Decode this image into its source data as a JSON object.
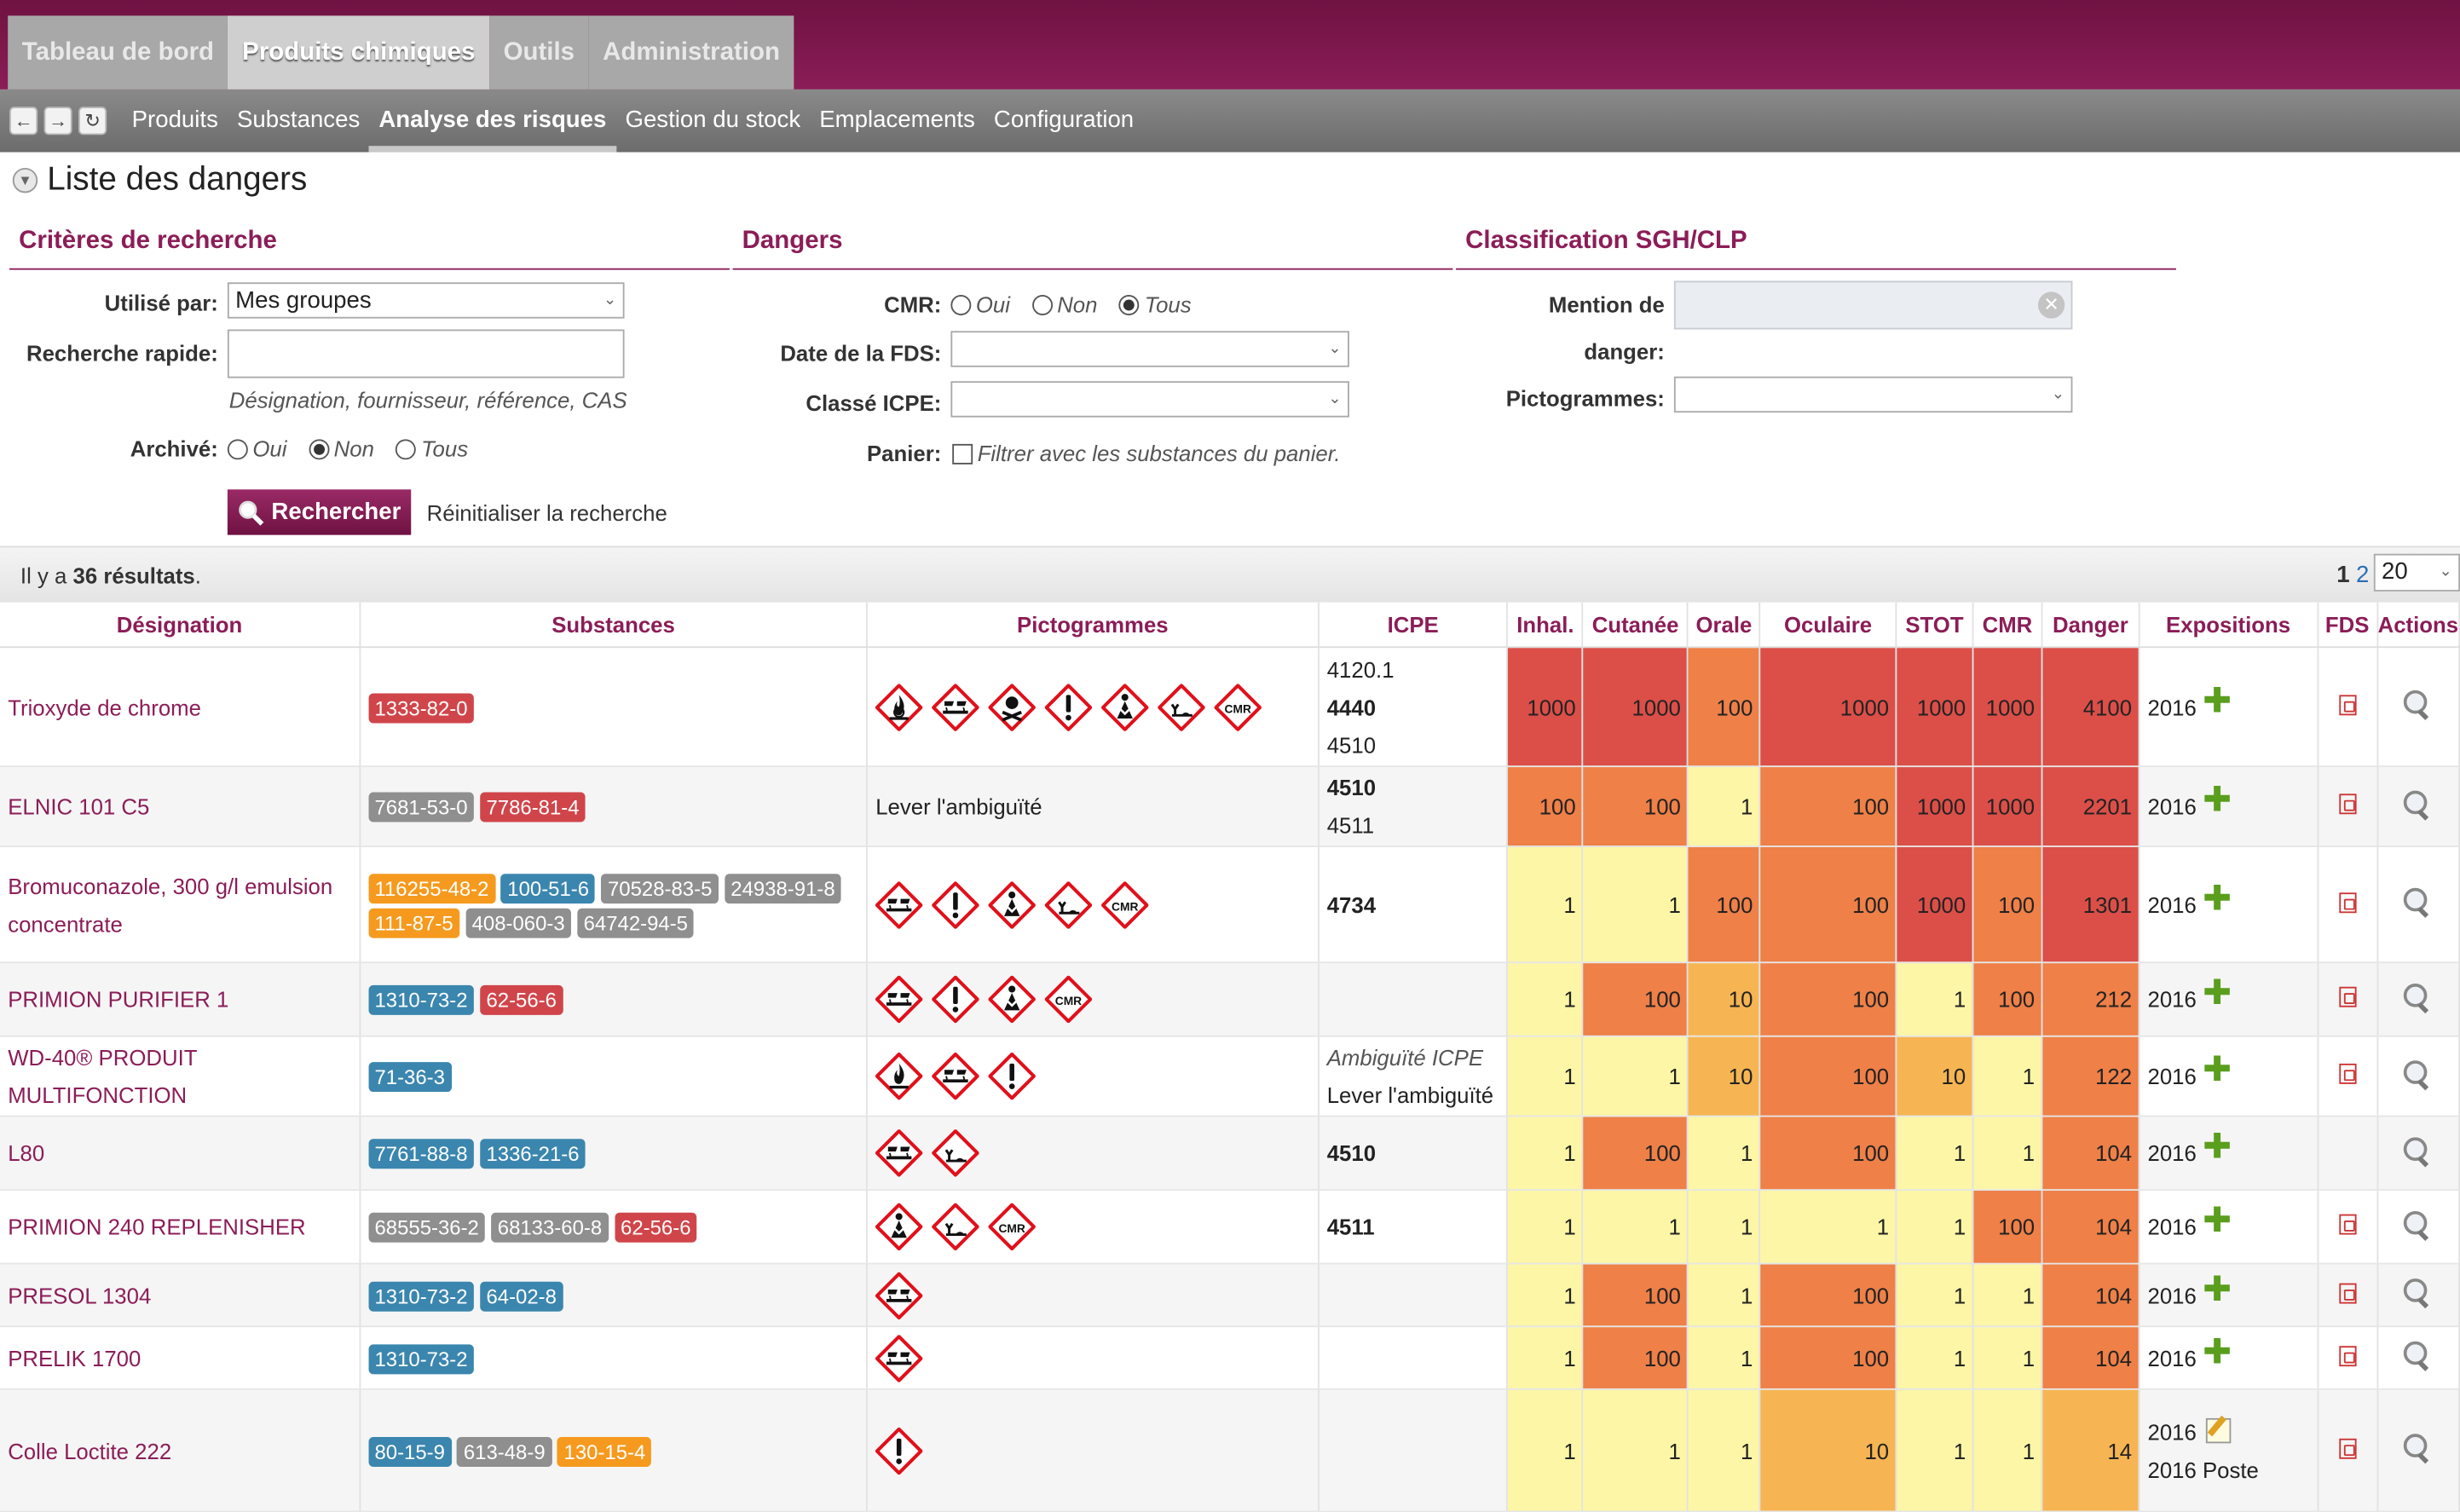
{
  "nav": {
    "tabs": [
      "Tableau de bord",
      "Produits chimiques",
      "Outils",
      "Administration"
    ],
    "active_tab": 1,
    "subtabs": [
      "Produits",
      "Substances",
      "Analyse des risques",
      "Gestion du stock",
      "Emplacements",
      "Configuration"
    ],
    "active_subtab": 2
  },
  "page": {
    "title": "Liste des dangers"
  },
  "criteria": {
    "title": "Critères de recherche",
    "used_by_label": "Utilisé par:",
    "used_by_value": "Mes groupes",
    "quick_search_label": "Recherche rapide:",
    "quick_search_value": "",
    "quick_search_hint": "Désignation, fournisseur, référence, CAS",
    "archived_label": "Archivé:",
    "archived_options": [
      "Oui",
      "Non",
      "Tous"
    ],
    "archived_selected": 1,
    "search_button": "Rechercher",
    "reset_link": "Réinitialiser la recherche"
  },
  "dangers": {
    "title": "Dangers",
    "cmr_label": "CMR:",
    "cmr_options": [
      "Oui",
      "Non",
      "Tous"
    ],
    "cmr_selected": 2,
    "fds_date_label": "Date de la FDS:",
    "fds_date_value": "",
    "icpe_label": "Classé ICPE:",
    "icpe_value": "",
    "basket_label": "Panier:",
    "basket_text": "Filtrer avec les substances du panier."
  },
  "classification": {
    "title": "Classification SGH/CLP",
    "hazard_label_line1": "Mention de",
    "hazard_label_line2": "danger:",
    "hazard_value": "",
    "pictograms_label": "Pictogrammes:",
    "pictograms_value": ""
  },
  "results": {
    "prefix": "Il y a ",
    "count": "36 résultats",
    "suffix": ".",
    "pages": [
      "1",
      "2"
    ],
    "current_page": "1",
    "page_size": "20"
  },
  "table": {
    "headers": [
      "Désignation",
      "Substances",
      "Pictogrammes",
      "ICPE",
      "Inhal.",
      "Cutanée",
      "Orale",
      "Oculaire",
      "STOT",
      "CMR",
      "Danger",
      "Expositions",
      "FDS",
      "Actions"
    ],
    "colors": {
      "low": "#fcf6a6",
      "med": "#f6b552",
      "high": "#ee8048",
      "vhigh": "#db4f48"
    },
    "rows": [
      {
        "designation": "Trioxyde de chrome",
        "substances": [
          {
            "cas": "1333-82-0",
            "color": "red"
          }
        ],
        "pictos": [
          "flame-over-circle",
          "corrosion",
          "skull",
          "exclamation",
          "health-hazard",
          "environment",
          "cmr"
        ],
        "icpe": [
          {
            "t": "4120.1",
            "b": false
          },
          {
            "t": "4440",
            "b": true
          },
          {
            "t": "4510",
            "b": false
          }
        ],
        "scores": [
          {
            "v": "1000",
            "c": "vhigh"
          },
          {
            "v": "1000",
            "c": "vhigh"
          },
          {
            "v": "100",
            "c": "high"
          },
          {
            "v": "1000",
            "c": "vhigh"
          },
          {
            "v": "1000",
            "c": "vhigh"
          },
          {
            "v": "1000",
            "c": "vhigh"
          },
          {
            "v": "4100",
            "c": "vhigh"
          }
        ],
        "expo": [
          {
            "t": "2016",
            "icon": "plus"
          }
        ],
        "fds": true,
        "height": 76
      },
      {
        "designation": "ELNIC 101 C5",
        "substances": [
          {
            "cas": "7681-53-0",
            "color": "gray"
          },
          {
            "cas": "7786-81-4",
            "color": "red"
          }
        ],
        "pictos": [],
        "picto_text": "Lever l'ambiguïté",
        "icpe": [
          {
            "t": "4510",
            "b": true
          },
          {
            "t": "4511",
            "b": false
          }
        ],
        "scores": [
          {
            "v": "100",
            "c": "high"
          },
          {
            "v": "100",
            "c": "high"
          },
          {
            "v": "1",
            "c": "low"
          },
          {
            "v": "100",
            "c": "high"
          },
          {
            "v": "1000",
            "c": "vhigh"
          },
          {
            "v": "1000",
            "c": "vhigh"
          },
          {
            "v": "2201",
            "c": "vhigh"
          }
        ],
        "expo": [
          {
            "t": "2016",
            "icon": "plus"
          }
        ],
        "fds": true,
        "height": 51
      },
      {
        "designation": "Bromuconazole, 300 g/l emulsion concentrate",
        "substances": [
          {
            "cas": "116255-48-2",
            "color": "orange"
          },
          {
            "cas": "100-51-6",
            "color": "blue"
          },
          {
            "cas": "70528-83-5",
            "color": "gray"
          },
          {
            "cas": "24938-91-8",
            "color": "gray"
          },
          {
            "cas": "111-87-5",
            "color": "orange"
          },
          {
            "cas": "408-060-3",
            "color": "gray"
          },
          {
            "cas": "64742-94-5",
            "color": "gray"
          }
        ],
        "pictos": [
          "corrosion",
          "exclamation",
          "health-hazard",
          "environment",
          "cmr"
        ],
        "icpe": [
          {
            "t": "4734",
            "b": true
          }
        ],
        "scores": [
          {
            "v": "1",
            "c": "low"
          },
          {
            "v": "1",
            "c": "low"
          },
          {
            "v": "100",
            "c": "high"
          },
          {
            "v": "100",
            "c": "high"
          },
          {
            "v": "1000",
            "c": "vhigh"
          },
          {
            "v": "100",
            "c": "high"
          },
          {
            "v": "1301",
            "c": "vhigh"
          }
        ],
        "expo": [
          {
            "t": "2016",
            "icon": "plus"
          }
        ],
        "fds": true,
        "height": 74
      },
      {
        "designation": "PRIMION PURIFIER 1",
        "substances": [
          {
            "cas": "1310-73-2",
            "color": "blue"
          },
          {
            "cas": "62-56-6",
            "color": "red"
          }
        ],
        "pictos": [
          "corrosion",
          "exclamation",
          "health-hazard",
          "cmr"
        ],
        "icpe": [],
        "scores": [
          {
            "v": "1",
            "c": "low"
          },
          {
            "v": "100",
            "c": "high"
          },
          {
            "v": "10",
            "c": "med"
          },
          {
            "v": "100",
            "c": "high"
          },
          {
            "v": "1",
            "c": "low"
          },
          {
            "v": "100",
            "c": "high"
          },
          {
            "v": "212",
            "c": "high"
          }
        ],
        "expo": [
          {
            "t": "2016",
            "icon": "plus"
          }
        ],
        "fds": true,
        "height": 47
      },
      {
        "designation": "WD-40® PRODUIT MULTIFONCTION",
        "substances": [
          {
            "cas": "71-36-3",
            "color": "blue"
          }
        ],
        "pictos": [
          "flame",
          "corrosion",
          "exclamation"
        ],
        "icpe_amb": [
          "Ambiguïté ICPE",
          "Lever l'ambiguïté"
        ],
        "icpe": [],
        "scores": [
          {
            "v": "1",
            "c": "low"
          },
          {
            "v": "1",
            "c": "low"
          },
          {
            "v": "10",
            "c": "med"
          },
          {
            "v": "100",
            "c": "high"
          },
          {
            "v": "10",
            "c": "med"
          },
          {
            "v": "1",
            "c": "low"
          },
          {
            "v": "122",
            "c": "high"
          }
        ],
        "expo": [
          {
            "t": "2016",
            "icon": "plus"
          }
        ],
        "fds": true,
        "height": 51
      },
      {
        "designation": "L80",
        "substances": [
          {
            "cas": "7761-88-8",
            "color": "blue"
          },
          {
            "cas": "1336-21-6",
            "color": "blue"
          }
        ],
        "pictos": [
          "corrosion",
          "environment"
        ],
        "icpe": [
          {
            "t": "4510",
            "b": true
          }
        ],
        "scores": [
          {
            "v": "1",
            "c": "low"
          },
          {
            "v": "100",
            "c": "high"
          },
          {
            "v": "1",
            "c": "low"
          },
          {
            "v": "100",
            "c": "high"
          },
          {
            "v": "1",
            "c": "low"
          },
          {
            "v": "1",
            "c": "low"
          },
          {
            "v": "104",
            "c": "high"
          }
        ],
        "expo": [
          {
            "t": "2016",
            "icon": "plus"
          }
        ],
        "fds": false,
        "height": 47
      },
      {
        "designation": "PRIMION 240 REPLENISHER",
        "substances": [
          {
            "cas": "68555-36-2",
            "color": "gray"
          },
          {
            "cas": "68133-60-8",
            "color": "gray"
          },
          {
            "cas": "62-56-6",
            "color": "red"
          }
        ],
        "pictos": [
          "health-hazard",
          "environment",
          "cmr"
        ],
        "icpe": [
          {
            "t": "4511",
            "b": true
          }
        ],
        "scores": [
          {
            "v": "1",
            "c": "low"
          },
          {
            "v": "1",
            "c": "low"
          },
          {
            "v": "1",
            "c": "low"
          },
          {
            "v": "1",
            "c": "low"
          },
          {
            "v": "1",
            "c": "low"
          },
          {
            "v": "100",
            "c": "high"
          },
          {
            "v": "104",
            "c": "high"
          }
        ],
        "expo": [
          {
            "t": "2016",
            "icon": "plus"
          }
        ],
        "fds": true,
        "height": 47
      },
      {
        "designation": "PRESOL 1304",
        "substances": [
          {
            "cas": "1310-73-2",
            "color": "blue"
          },
          {
            "cas": "64-02-8",
            "color": "blue"
          }
        ],
        "pictos": [
          "corrosion"
        ],
        "icpe": [],
        "scores": [
          {
            "v": "1",
            "c": "low"
          },
          {
            "v": "100",
            "c": "high"
          },
          {
            "v": "1",
            "c": "low"
          },
          {
            "v": "100",
            "c": "high"
          },
          {
            "v": "1",
            "c": "low"
          },
          {
            "v": "1",
            "c": "low"
          },
          {
            "v": "104",
            "c": "high"
          }
        ],
        "expo": [
          {
            "t": "2016",
            "icon": "plus"
          }
        ],
        "fds": true,
        "height": 40
      },
      {
        "designation": "PRELIK 1700",
        "substances": [
          {
            "cas": "1310-73-2",
            "color": "blue"
          }
        ],
        "pictos": [
          "corrosion"
        ],
        "icpe": [],
        "scores": [
          {
            "v": "1",
            "c": "low"
          },
          {
            "v": "100",
            "c": "high"
          },
          {
            "v": "1",
            "c": "low"
          },
          {
            "v": "100",
            "c": "high"
          },
          {
            "v": "1",
            "c": "low"
          },
          {
            "v": "1",
            "c": "low"
          },
          {
            "v": "104",
            "c": "high"
          }
        ],
        "expo": [
          {
            "t": "2016",
            "icon": "plus"
          }
        ],
        "fds": true,
        "height": 40
      },
      {
        "designation": "Colle Loctite 222",
        "substances": [
          {
            "cas": "80-15-9",
            "color": "blue"
          },
          {
            "cas": "613-48-9",
            "color": "gray"
          },
          {
            "cas": "130-15-4",
            "color": "orange"
          }
        ],
        "pictos": [
          "exclamation"
        ],
        "icpe": [],
        "scores": [
          {
            "v": "1",
            "c": "low"
          },
          {
            "v": "1",
            "c": "low"
          },
          {
            "v": "1",
            "c": "low"
          },
          {
            "v": "10",
            "c": "med"
          },
          {
            "v": "1",
            "c": "low"
          },
          {
            "v": "1",
            "c": "low"
          },
          {
            "v": "14",
            "c": "med"
          }
        ],
        "expo": [
          {
            "t": "2016",
            "icon": "pencil"
          },
          {
            "t": "2016 Poste",
            "icon": ""
          }
        ],
        "fds": true,
        "height": 78
      }
    ]
  }
}
